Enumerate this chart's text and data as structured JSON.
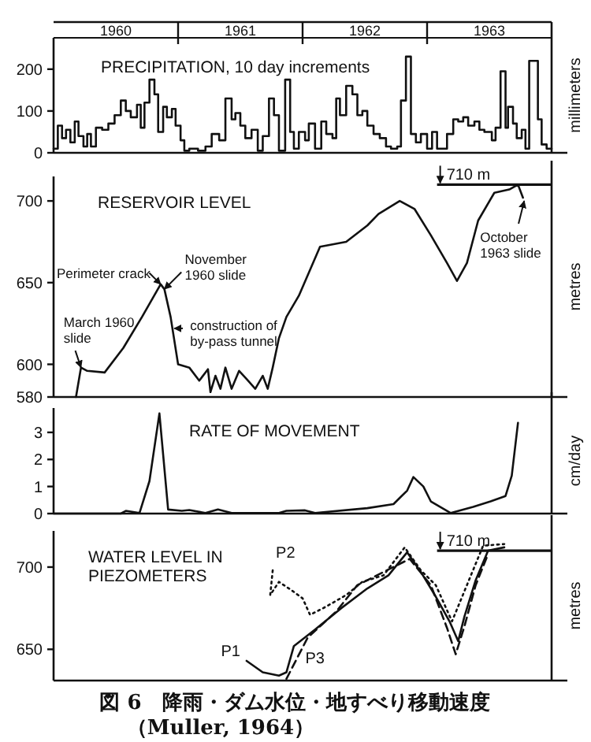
{
  "chart_data": [
    {
      "type": "step",
      "title": "PRECIPITATION, 10 day increments",
      "ylabel": "millimeters",
      "xlim": [
        1960,
        1964
      ],
      "xticks": [
        {
          "value": 1960.5,
          "label": "1960"
        },
        {
          "value": 1961.5,
          "label": "1961"
        },
        {
          "value": 1962.5,
          "label": "1962"
        },
        {
          "value": 1963.5,
          "label": "1963"
        }
      ],
      "ylim": [
        0,
        275
      ],
      "yticks": [
        0,
        100,
        200
      ],
      "color": "#111111",
      "x": [
        1960.0,
        1960.034,
        1960.068,
        1960.1,
        1960.135,
        1960.17,
        1960.2,
        1960.24,
        1960.27,
        1960.3,
        1960.34,
        1960.39,
        1960.44,
        1960.49,
        1960.54,
        1960.58,
        1960.62,
        1960.67,
        1960.7,
        1960.73,
        1960.77,
        1960.81,
        1960.84,
        1960.88,
        1960.91,
        1960.95,
        1960.98,
        1961.02,
        1961.05,
        1961.09,
        1961.16,
        1961.22,
        1961.27,
        1961.33,
        1961.38,
        1961.43,
        1961.46,
        1961.5,
        1961.54,
        1961.59,
        1961.64,
        1961.68,
        1961.73,
        1961.77,
        1961.81,
        1961.86,
        1961.9,
        1961.93,
        1961.97,
        1962.02,
        1962.05,
        1962.1,
        1962.15,
        1962.19,
        1962.24,
        1962.27,
        1962.3,
        1962.35,
        1962.4,
        1962.44,
        1962.48,
        1962.52,
        1962.57,
        1962.62,
        1962.67,
        1962.71,
        1962.76,
        1962.79,
        1962.83,
        1962.87,
        1962.91,
        1962.95,
        1963.0,
        1963.04,
        1963.08,
        1963.16,
        1963.21,
        1963.25,
        1963.29,
        1963.33,
        1963.38,
        1963.42,
        1963.46,
        1963.52,
        1963.55,
        1963.59,
        1963.63,
        1963.65,
        1963.69,
        1963.72,
        1963.76,
        1963.79,
        1963.82,
        1963.89,
        1963.92,
        1963.96,
        1964.0
      ],
      "values": [
        10,
        65,
        35,
        55,
        25,
        75,
        40,
        15,
        45,
        15,
        60,
        55,
        70,
        90,
        125,
        100,
        85,
        115,
        60,
        120,
        175,
        140,
        50,
        110,
        85,
        105,
        65,
        30,
        5,
        10,
        5,
        15,
        45,
        30,
        130,
        80,
        95,
        65,
        35,
        55,
        5,
        40,
        130,
        90,
        5,
        175,
        50,
        10,
        50,
        30,
        70,
        10,
        75,
        45,
        35,
        130,
        90,
        160,
        140,
        90,
        100,
        65,
        45,
        35,
        15,
        10,
        15,
        125,
        230,
        45,
        25,
        45,
        10,
        50,
        10,
        45,
        80,
        75,
        85,
        65,
        75,
        55,
        50,
        30,
        60,
        195,
        60,
        110,
        70,
        35,
        55,
        10,
        220,
        80,
        20,
        10,
        10
      ]
    },
    {
      "type": "line",
      "title": "RESERVOIR LEVEL",
      "ylabel": "metres",
      "xlim": [
        1960,
        1964
      ],
      "ylim": [
        580,
        715
      ],
      "yticks": [
        580,
        600,
        650,
        700
      ],
      "tick_labels": "y",
      "color": "#111111",
      "x": [
        1960.18,
        1960.22,
        1960.27,
        1960.41,
        1960.56,
        1960.71,
        1960.86,
        1960.89,
        1960.94,
        1961.0,
        1961.09,
        1961.17,
        1961.24,
        1961.26,
        1961.3,
        1961.34,
        1961.38,
        1961.43,
        1961.49,
        1961.55,
        1961.62,
        1961.68,
        1961.72,
        1961.76,
        1961.81,
        1961.87,
        1961.97,
        1962.14,
        1962.35,
        1962.52,
        1962.61,
        1962.78,
        1962.9,
        1963.03,
        1963.16,
        1963.24,
        1963.32,
        1963.41,
        1963.54,
        1963.66,
        1963.73,
        1963.77
      ],
      "values": [
        580,
        598,
        596,
        595,
        610,
        629,
        649,
        646,
        629,
        600,
        598,
        590,
        597,
        583,
        593,
        585,
        598,
        585,
        596,
        591,
        585,
        593,
        585,
        598,
        616,
        629,
        642,
        672,
        675,
        685,
        692,
        700,
        695,
        679,
        662,
        651,
        662,
        688,
        705,
        707,
        710,
        702
      ],
      "ref_lines": [
        {
          "axis": "y",
          "value": 710,
          "label": "710 m"
        }
      ],
      "annotations": [
        {
          "text": "March 1960 slide",
          "x": 1960.22,
          "y": 598
        },
        {
          "text": "Perimeter crack",
          "x": 1960.86,
          "y": 649
        },
        {
          "text": "November 1960 slide",
          "x": 1960.89,
          "y": 646
        },
        {
          "text": "construction of by-pass tunnel",
          "x": 1960.97,
          "y": 622
        },
        {
          "text": "October 1963 slide",
          "x": 1963.78,
          "y": 700
        }
      ]
    },
    {
      "type": "line",
      "title": "RATE OF MOVEMENT",
      "ylabel": "cm/day",
      "xlim": [
        1960,
        1964
      ],
      "ylim": [
        0,
        3.9
      ],
      "yticks": [
        0,
        1,
        2,
        3
      ],
      "tick_labels": "y",
      "color": "#111111",
      "x": [
        1960.0,
        1960.54,
        1960.58,
        1960.69,
        1960.77,
        1960.85,
        1960.92,
        1961.03,
        1961.09,
        1961.22,
        1961.32,
        1961.43,
        1961.81,
        1961.87,
        1962.02,
        1962.1,
        1962.52,
        1962.73,
        1962.84,
        1962.89,
        1962.97,
        1963.03,
        1963.19,
        1963.37,
        1963.51,
        1963.63,
        1963.68,
        1963.73
      ],
      "values": [
        0,
        0,
        0.1,
        0.02,
        1.2,
        3.7,
        0.15,
        0.1,
        0.13,
        0.02,
        0.15,
        0.02,
        0.02,
        0.1,
        0.12,
        0.02,
        0.2,
        0.35,
        0.85,
        1.35,
        1.0,
        0.45,
        0.02,
        0.25,
        0.45,
        0.65,
        1.4,
        3.35
      ]
    },
    {
      "type": "line",
      "title": "WATER LEVEL IN PIEZOMETERS",
      "ylabel": "metres",
      "xlim": [
        1960,
        1964
      ],
      "ylim": [
        631,
        722
      ],
      "yticks": [
        650,
        700
      ],
      "tick_labels": "y",
      "ref_lines": [
        {
          "axis": "y",
          "value": 710,
          "label": "710 m"
        }
      ],
      "series": [
        {
          "name": "P1",
          "color": "#111111",
          "line_style": "solid",
          "x": [
            1961.55,
            1961.68,
            1961.81,
            1961.87,
            1961.93,
            1962.1,
            1962.31,
            1962.52,
            1962.69,
            1962.84,
            1962.95,
            1963.07,
            1963.18,
            1963.25,
            1963.3,
            1963.39,
            1963.49,
            1963.62
          ],
          "values": [
            643,
            636,
            634,
            636,
            652,
            662,
            675,
            687,
            695,
            709,
            697,
            682,
            667,
            655,
            670,
            692,
            710,
            712
          ]
        },
        {
          "name": "P2",
          "color": "#111111",
          "line_style": "dotted",
          "x": [
            1961.76,
            1961.74,
            1961.81,
            1961.91,
            1962.0,
            1962.06,
            1962.19,
            1962.35,
            1962.48,
            1962.65,
            1962.82,
            1962.95,
            1963.07,
            1963.2,
            1963.45,
            1963.62
          ],
          "values": [
            698,
            683,
            691,
            686,
            681,
            671,
            676,
            683,
            691,
            695,
            712,
            698,
            689,
            667,
            713,
            714
          ]
        },
        {
          "name": "P3",
          "color": "#111111",
          "line_style": "dashed",
          "x": [
            1961.87,
            1962.04,
            1962.27,
            1962.44,
            1962.86,
            1963.03,
            1963.16,
            1963.23,
            1963.3,
            1963.39,
            1963.49
          ],
          "values": [
            632,
            657,
            673,
            689,
            705,
            689,
            663,
            647,
            664,
            689,
            708
          ]
        }
      ],
      "annotations": [
        "図 6　降雨・ダム水位・地すべり移動速度",
        "（Muller, 1964）"
      ]
    }
  ]
}
